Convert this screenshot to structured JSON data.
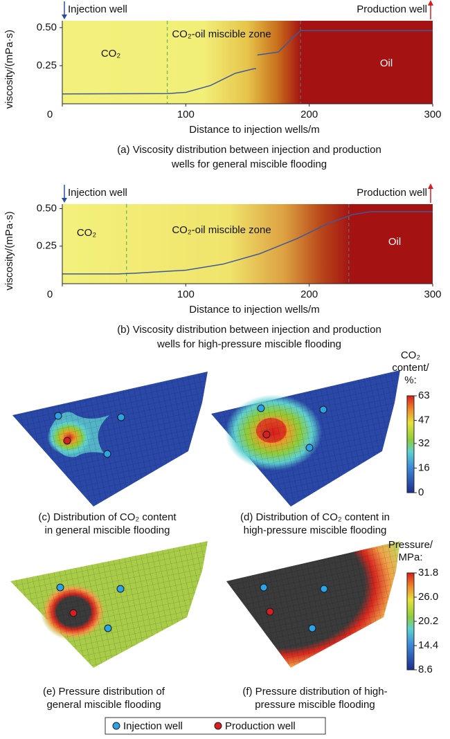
{
  "chart_data": [
    {
      "type": "line",
      "caption": [
        "(a) Viscosity distribution between injection and production",
        "wells for general miscible flooding"
      ],
      "y_label": "viscosity/(mPa·s)",
      "x_label": "Distance to injection wells/m",
      "xlim": [
        0,
        300
      ],
      "xticks": [
        0,
        100,
        200,
        300
      ],
      "ylim": [
        0,
        0.545
      ],
      "yticks": [
        0.25,
        {
          "value": 0.5,
          "label": "0.50"
        }
      ],
      "annotations": [
        "Injection well",
        "Production well",
        "CO₂",
        "CO₂-oil miscible zone",
        "Oil"
      ],
      "boundaries": [
        85,
        193
      ],
      "color": "#3c5a9a",
      "x": [
        0,
        85,
        100,
        120,
        140,
        155,
        157,
        157.5,
        158,
        175,
        185,
        193,
        300
      ],
      "values": [
        0.065,
        0.067,
        0.075,
        0.12,
        0.2,
        0.23,
        0.23,
        null,
        0.32,
        0.34,
        0.42,
        0.48,
        0.48
      ]
    },
    {
      "type": "line",
      "caption": [
        "(b) Viscosity distribution between injection and production",
        "wells for high-pressure miscible flooding"
      ],
      "y_label": "viscosity/(mPa·s)",
      "x_label": "Distance to injection wells/m",
      "xlim": [
        0,
        300
      ],
      "xticks": [
        0,
        100,
        200,
        300
      ],
      "ylim": [
        0,
        0.53
      ],
      "yticks": [
        0.25,
        {
          "value": 0.5,
          "label": "0.50"
        }
      ],
      "annotations": [
        "Injection well",
        "Production well",
        "CO₂",
        "CO₂-oil miscible zone",
        "Oil"
      ],
      "boundaries": [
        52,
        232
      ],
      "color": "#3c5a9a",
      "x": [
        0,
        45,
        60,
        100,
        130,
        160,
        190,
        215,
        235,
        250,
        300
      ],
      "values": [
        0.065,
        0.065,
        0.07,
        0.09,
        0.13,
        0.2,
        0.3,
        0.4,
        0.46,
        0.48,
        0.48
      ]
    },
    {
      "type": "colorbar",
      "title": [
        "CO₂",
        "content/",
        "%:"
      ],
      "ylim": [
        0,
        63
      ],
      "yticks": [
        0,
        16,
        32,
        47,
        63
      ]
    },
    {
      "type": "colorbar",
      "title": [
        "Pressure/",
        "MPa:"
      ],
      "ylim": [
        8.6,
        31.8
      ],
      "yticks": [
        8.6,
        14.4,
        20.2,
        {
          "value": 26,
          "label": "26.0"
        },
        31.8
      ]
    }
  ],
  "panels": [
    [
      "(c) Distribution of CO₂ content",
      "in general miscible flooding"
    ],
    [
      "(d) Distribution of CO₂ content in",
      "high-pressure miscible flooding"
    ],
    [
      "(e) Pressure distribution of",
      "general miscible flooding"
    ],
    [
      "(f) Pressure distribution of high-",
      "pressure miscible flooding"
    ]
  ],
  "legend": [
    "Injection well",
    "Production well"
  ]
}
